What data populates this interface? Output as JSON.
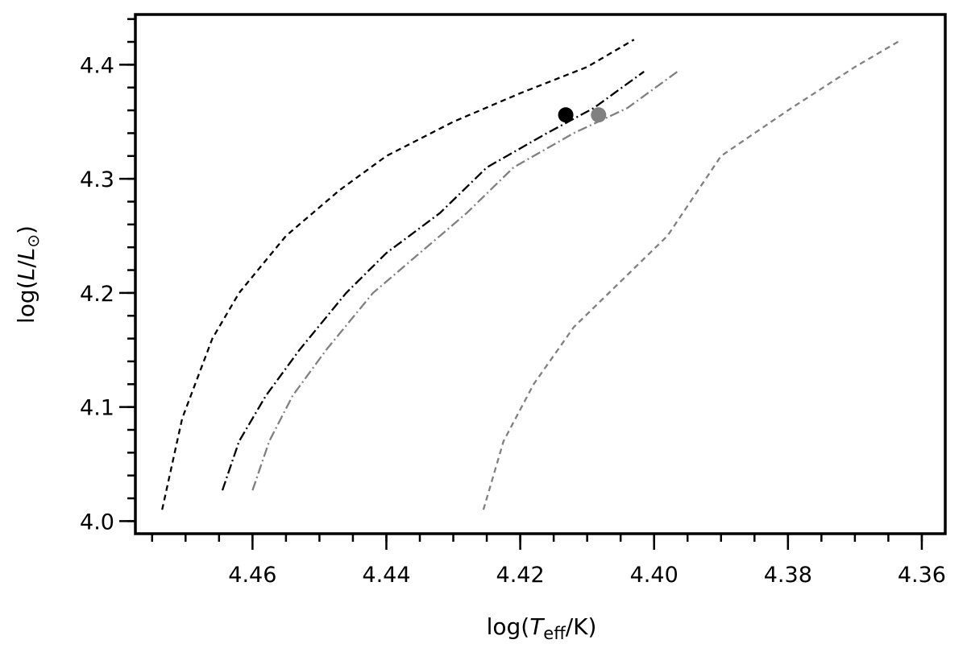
{
  "chart_data": {
    "type": "line",
    "xlabel_parts": {
      "prefix": "log(",
      "var": "T",
      "sub": "eff",
      "suffix": "/K)"
    },
    "ylabel_parts": {
      "prefix": "log(",
      "var_a": "L",
      "slash": "/",
      "var_b": "L",
      "sub": "⊙",
      "suffix": ")"
    },
    "xlim": [
      4.4775,
      4.3565
    ],
    "ylim": [
      3.989,
      4.444
    ],
    "x_axis_inverted": true,
    "x_ticks": [
      4.46,
      4.44,
      4.42,
      4.4,
      4.38,
      4.36
    ],
    "x_tick_labels": [
      "4.46",
      "4.44",
      "4.42",
      "4.40",
      "4.38",
      "4.36"
    ],
    "x_minor_step": 0.005,
    "y_ticks": [
      4.0,
      4.1,
      4.2,
      4.3,
      4.4
    ],
    "y_tick_labels": [
      "4.0",
      "4.1",
      "4.2",
      "4.3",
      "4.4"
    ],
    "y_minor_step": 0.02,
    "grid": false,
    "legend": "none",
    "series": [
      {
        "style": "dashed",
        "color": "#000000",
        "points": [
          [
            4.4735,
            4.01
          ],
          [
            4.4705,
            4.09
          ],
          [
            4.466,
            4.16
          ],
          [
            4.462,
            4.2
          ],
          [
            4.455,
            4.25
          ],
          [
            4.447,
            4.29
          ],
          [
            4.44,
            4.32
          ],
          [
            4.43,
            4.35
          ],
          [
            4.42,
            4.375
          ],
          [
            4.41,
            4.398
          ],
          [
            4.403,
            4.422
          ]
        ]
      },
      {
        "style": "dashdot",
        "color": "#000000",
        "points": [
          [
            4.4645,
            4.027
          ],
          [
            4.462,
            4.07
          ],
          [
            4.458,
            4.11
          ],
          [
            4.453,
            4.15
          ],
          [
            4.446,
            4.2
          ],
          [
            4.44,
            4.235
          ],
          [
            4.432,
            4.27
          ],
          [
            4.425,
            4.31
          ],
          [
            4.416,
            4.34
          ],
          [
            4.409,
            4.362
          ],
          [
            4.4015,
            4.394
          ]
        ]
      },
      {
        "style": "dashdot",
        "color": "#808080",
        "points": [
          [
            4.46,
            4.027
          ],
          [
            4.4575,
            4.07
          ],
          [
            4.454,
            4.11
          ],
          [
            4.449,
            4.15
          ],
          [
            4.442,
            4.2
          ],
          [
            4.435,
            4.235
          ],
          [
            4.428,
            4.27
          ],
          [
            4.421,
            4.31
          ],
          [
            4.412,
            4.34
          ],
          [
            4.404,
            4.362
          ],
          [
            4.3965,
            4.394
          ]
        ]
      },
      {
        "style": "dashed",
        "color": "#808080",
        "points": [
          [
            4.4255,
            4.01
          ],
          [
            4.4225,
            4.07
          ],
          [
            4.418,
            4.12
          ],
          [
            4.412,
            4.17
          ],
          [
            4.405,
            4.21
          ],
          [
            4.398,
            4.25
          ],
          [
            4.39,
            4.32
          ],
          [
            4.38,
            4.36
          ],
          [
            4.37,
            4.398
          ],
          [
            4.363,
            4.422
          ]
        ]
      }
    ],
    "markers": [
      {
        "x": 4.4132,
        "y": 4.356,
        "color": "#000000"
      },
      {
        "x": 4.4083,
        "y": 4.356,
        "color": "#808080"
      }
    ]
  }
}
